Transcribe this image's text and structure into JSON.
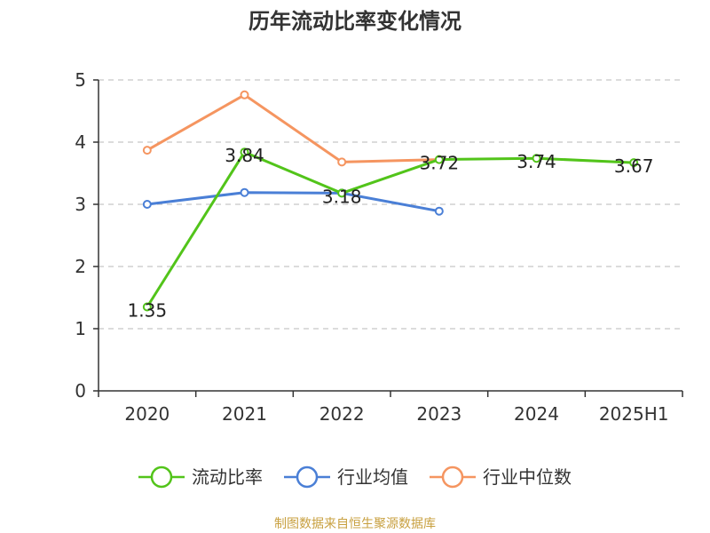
{
  "chart_data": {
    "type": "line",
    "title": "历年流动比率变化情况",
    "categories": [
      "2020",
      "2021",
      "2022",
      "2023",
      "2024",
      "2025H1"
    ],
    "ylim": [
      0,
      5
    ],
    "y_ticks": [
      0,
      1,
      2,
      3,
      4,
      5
    ],
    "grid": true,
    "legend_position": "bottom",
    "series": [
      {
        "name": "流动比率",
        "color": "#52c41a",
        "values": [
          1.35,
          3.84,
          3.18,
          3.72,
          3.74,
          3.67
        ],
        "labels": [
          "1.35",
          "3.84",
          "3.18",
          "3.72",
          "3.74",
          "3.67"
        ]
      },
      {
        "name": "行业均值",
        "color": "#4a7fd6",
        "values": [
          3.0,
          3.19,
          3.18,
          2.89,
          null,
          null
        ]
      },
      {
        "name": "行业中位数",
        "color": "#f59560",
        "values": [
          3.87,
          4.76,
          3.68,
          3.72,
          null,
          null
        ]
      }
    ],
    "source": "制图数据来自恒生聚源数据库"
  }
}
